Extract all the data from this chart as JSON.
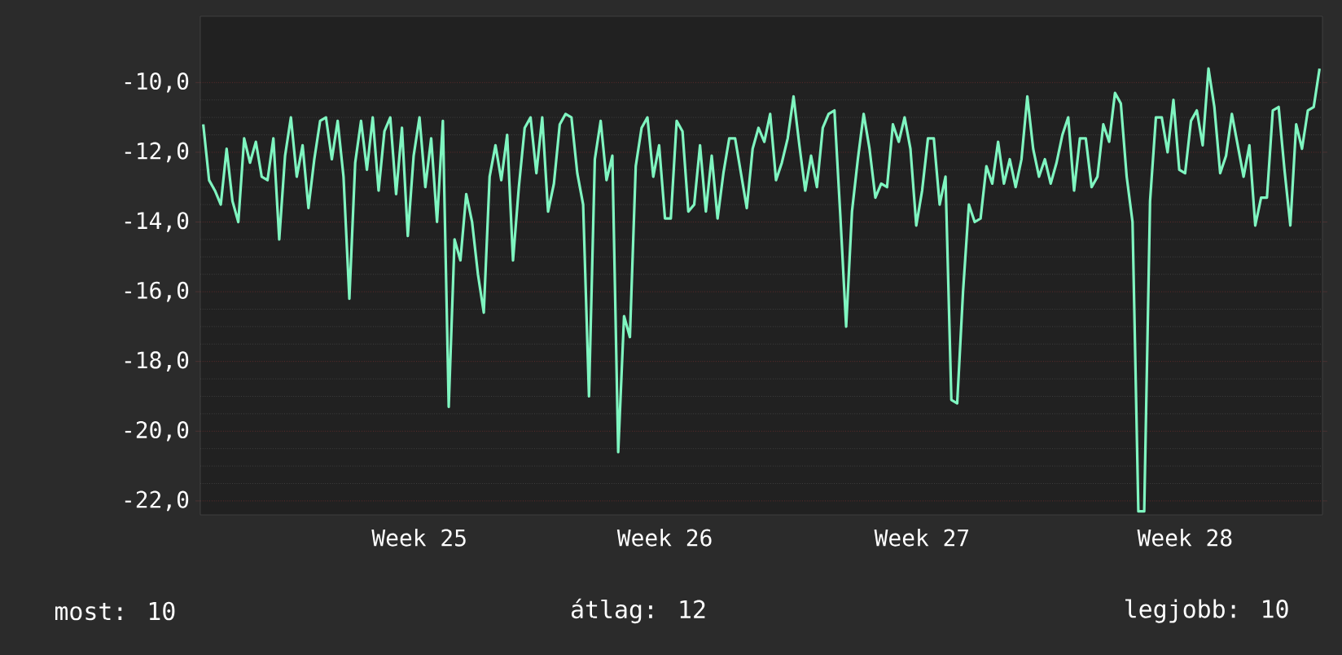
{
  "chart_data": {
    "type": "line",
    "color": "#7ff5c0",
    "categories": [
      null,
      null,
      null,
      null,
      null,
      null,
      null,
      null,
      null,
      null,
      null,
      null,
      null,
      null,
      null,
      null,
      null,
      null,
      null,
      null,
      null,
      null,
      null,
      null,
      null,
      null,
      null,
      null,
      null,
      null,
      null,
      null,
      null,
      null,
      null,
      null,
      null,
      "Week 25",
      null,
      null,
      null,
      null,
      null,
      null,
      null,
      null,
      null,
      null,
      null,
      null,
      null,
      null,
      null,
      null,
      null,
      null,
      null,
      null,
      null,
      null,
      null,
      null,
      null,
      null,
      null,
      null,
      null,
      null,
      null,
      null,
      null,
      null,
      null,
      null,
      null,
      null,
      null,
      null,
      null,
      "Week 26",
      null,
      null,
      null,
      null,
      null,
      null,
      null,
      null,
      null,
      null,
      null,
      null,
      null,
      null,
      null,
      null,
      null,
      null,
      null,
      null,
      null,
      null,
      null,
      null,
      null,
      null,
      null,
      null,
      null,
      null,
      null,
      null,
      null,
      null,
      null,
      null,
      null,
      null,
      null,
      null,
      null,
      null,
      null,
      "Week 27",
      null,
      null,
      null,
      null,
      null,
      null,
      null,
      null,
      null,
      null,
      null,
      null,
      null,
      null,
      null,
      null,
      null,
      null,
      null,
      null,
      null,
      null,
      null,
      null,
      null,
      null,
      null,
      null,
      null,
      null,
      null,
      null,
      null,
      null,
      null,
      null,
      null,
      null,
      null,
      null,
      null,
      null,
      null,
      null,
      "Week 28",
      null,
      null,
      null,
      null,
      null,
      null,
      null,
      null,
      null,
      null,
      null,
      null,
      null,
      null,
      null,
      null,
      null,
      null,
      null,
      null,
      null,
      null,
      null
    ],
    "values": [
      -11.2,
      -12.8,
      -13.1,
      -13.5,
      -11.9,
      -13.4,
      -14.0,
      -11.6,
      -12.3,
      -11.7,
      -12.7,
      -12.8,
      -11.6,
      -14.5,
      -12.1,
      -11.0,
      -12.7,
      -11.8,
      -13.6,
      -12.2,
      -11.1,
      -11.0,
      -12.2,
      -11.1,
      -12.7,
      -16.2,
      -12.3,
      -11.1,
      -12.5,
      -11.0,
      -13.1,
      -11.4,
      -11.0,
      -13.2,
      -11.3,
      -14.4,
      -12.1,
      -11.0,
      -13.0,
      -11.6,
      -14.0,
      -11.1,
      -19.3,
      -14.5,
      -15.1,
      -13.2,
      -14.0,
      -15.5,
      -16.6,
      -12.7,
      -11.8,
      -12.8,
      -11.5,
      -15.1,
      -13.0,
      -11.3,
      -11.0,
      -12.6,
      -11.0,
      -13.7,
      -12.9,
      -11.2,
      -10.9,
      -11.0,
      -12.6,
      -13.5,
      -19.0,
      -12.2,
      -11.1,
      -12.8,
      -12.1,
      -20.6,
      -16.7,
      -17.3,
      -12.4,
      -11.3,
      -11.0,
      -12.7,
      -11.8,
      -13.9,
      -13.9,
      -11.1,
      -11.4,
      -13.7,
      -13.5,
      -11.8,
      -13.7,
      -12.1,
      -13.9,
      -12.6,
      -11.6,
      -11.6,
      -12.6,
      -13.6,
      -11.9,
      -11.3,
      -11.7,
      -10.9,
      -12.8,
      -12.3,
      -11.6,
      -10.4,
      -11.8,
      -13.1,
      -12.1,
      -13.0,
      -11.3,
      -10.9,
      -10.8,
      -13.8,
      -17.0,
      -13.7,
      -12.2,
      -10.9,
      -11.9,
      -13.3,
      -12.9,
      -13.0,
      -11.2,
      -11.7,
      -11.0,
      -11.9,
      -14.1,
      -13.1,
      -11.6,
      -11.6,
      -13.5,
      -12.7,
      -19.1,
      -19.2,
      -16.0,
      -13.5,
      -14.0,
      -13.9,
      -12.4,
      -12.9,
      -11.7,
      -12.9,
      -12.2,
      -13.0,
      -12.2,
      -10.4,
      -11.9,
      -12.7,
      -12.2,
      -12.9,
      -12.3,
      -11.5,
      -11.0,
      -13.1,
      -11.6,
      -11.6,
      -13.0,
      -12.7,
      -11.2,
      -11.7,
      -10.3,
      -10.6,
      -12.7,
      -14.0,
      -22.3,
      -22.3,
      -13.4,
      -11.0,
      -11.0,
      -12.0,
      -10.5,
      -12.5,
      -12.6,
      -11.1,
      -10.8,
      -11.8,
      -9.6,
      -10.7,
      -12.6,
      -12.1,
      -10.9,
      -11.8,
      -12.7,
      -11.8,
      -14.1,
      -13.3,
      -13.3,
      -10.8,
      -10.7,
      -12.5,
      -14.1,
      -11.2,
      -11.9,
      -10.8,
      -10.7,
      -9.6
    ],
    "ylim": [
      -22.4,
      -8.1
    ],
    "yticks": [
      {
        "value": -10,
        "label": "-10,0"
      },
      {
        "value": -12,
        "label": "-12,0"
      },
      {
        "value": -14,
        "label": "-14,0"
      },
      {
        "value": -16,
        "label": "-16,0"
      },
      {
        "value": -18,
        "label": "-18,0"
      },
      {
        "value": -20,
        "label": "-20,0"
      },
      {
        "value": -22,
        "label": "-22,0"
      }
    ],
    "grid": "y",
    "annotations": [
      "most: 10",
      "átlag: 12",
      "legjobb: 10"
    ]
  }
}
